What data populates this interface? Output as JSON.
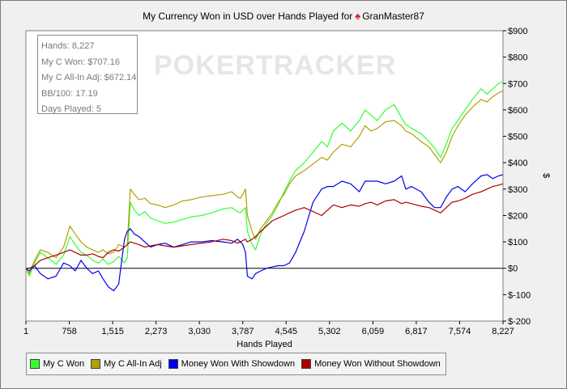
{
  "title": "My Currency Won in USD over Hands Played for",
  "player": "GranMaster87",
  "icon": "spade-icon",
  "watermark": "POKERTRACKER",
  "stats": [
    {
      "label": "Hands:",
      "value": "8,227"
    },
    {
      "label": "My C Won:",
      "value": "$707.16"
    },
    {
      "label": "My C All-In Adj:",
      "value": "$672.14"
    },
    {
      "label": "BB/100:",
      "value": "17.19"
    },
    {
      "label": "Days Played:",
      "value": "5"
    }
  ],
  "chart_data": {
    "type": "line",
    "title": "My Currency Won in USD over Hands Played for GranMaster87",
    "xlabel": "Hands Played",
    "ylabel": "$",
    "xlim": [
      1,
      8227
    ],
    "ylim": [
      -200,
      900
    ],
    "x_ticks": [
      "1",
      "758",
      "1,515",
      "2,273",
      "3,030",
      "3,787",
      "4,545",
      "5,302",
      "6,059",
      "6,817",
      "7,574",
      "8,227"
    ],
    "y_ticks": [
      "$900",
      "$800",
      "$700",
      "$600",
      "$500",
      "$400",
      "$300",
      "$200",
      "$100",
      "$0",
      "$-100",
      "$-200"
    ],
    "legend_position": "bottom",
    "series": [
      {
        "name": "My C Won",
        "color": "#33ff33",
        "x": [
          1,
          60,
          150,
          250,
          380,
          520,
          650,
          760,
          850,
          950,
          1050,
          1150,
          1250,
          1330,
          1420,
          1515,
          1600,
          1700,
          1750,
          1800,
          1870,
          1950,
          2050,
          2150,
          2273,
          2400,
          2550,
          2700,
          2850,
          3030,
          3200,
          3400,
          3550,
          3650,
          3700,
          3740,
          3787,
          3820,
          3900,
          3960,
          4050,
          4150,
          4250,
          4350,
          4450,
          4545,
          4650,
          4800,
          4950,
          5100,
          5200,
          5302,
          5450,
          5600,
          5750,
          5850,
          5950,
          6059,
          6200,
          6350,
          6480,
          6550,
          6650,
          6817,
          6950,
          7050,
          7150,
          7250,
          7350,
          7450,
          7574,
          7700,
          7850,
          7950,
          8050,
          8150,
          8227
        ],
        "values": [
          0,
          -30,
          20,
          60,
          40,
          15,
          50,
          120,
          90,
          60,
          50,
          30,
          20,
          35,
          15,
          25,
          45,
          20,
          40,
          250,
          220,
          200,
          215,
          190,
          180,
          170,
          175,
          185,
          195,
          200,
          210,
          225,
          230,
          215,
          210,
          220,
          230,
          140,
          90,
          70,
          130,
          170,
          200,
          240,
          290,
          330,
          370,
          400,
          440,
          480,
          460,
          520,
          550,
          520,
          560,
          600,
          580,
          560,
          600,
          620,
          570,
          545,
          530,
          510,
          480,
          455,
          420,
          470,
          530,
          560,
          600,
          640,
          680,
          660,
          680,
          700,
          707
        ]
      },
      {
        "name": "My C All-In Adj",
        "color": "#b0a000",
        "x": [
          1,
          60,
          150,
          250,
          380,
          520,
          650,
          760,
          850,
          950,
          1050,
          1150,
          1250,
          1330,
          1420,
          1515,
          1600,
          1700,
          1750,
          1800,
          1870,
          1950,
          2050,
          2150,
          2273,
          2400,
          2550,
          2700,
          2850,
          3030,
          3200,
          3400,
          3550,
          3650,
          3700,
          3740,
          3787,
          3820,
          3900,
          3960,
          4050,
          4150,
          4250,
          4350,
          4450,
          4545,
          4650,
          4800,
          4950,
          5100,
          5200,
          5302,
          5450,
          5600,
          5750,
          5850,
          5950,
          6059,
          6200,
          6350,
          6480,
          6550,
          6650,
          6817,
          6950,
          7050,
          7150,
          7250,
          7350,
          7450,
          7574,
          7700,
          7850,
          7950,
          8050,
          8150,
          8227
        ],
        "values": [
          0,
          -20,
          30,
          70,
          60,
          40,
          80,
          160,
          130,
          100,
          80,
          70,
          60,
          70,
          55,
          60,
          90,
          80,
          90,
          300,
          280,
          260,
          265,
          245,
          240,
          230,
          240,
          255,
          260,
          270,
          275,
          280,
          290,
          270,
          265,
          280,
          300,
          200,
          140,
          110,
          150,
          180,
          210,
          250,
          280,
          320,
          350,
          370,
          395,
          420,
          410,
          440,
          470,
          460,
          500,
          540,
          520,
          530,
          555,
          560,
          540,
          520,
          510,
          480,
          460,
          430,
          400,
          440,
          500,
          540,
          580,
          610,
          640,
          630,
          650,
          665,
          672
        ]
      },
      {
        "name": "Money Won With Showdown",
        "color": "#0000ee",
        "x": [
          1,
          60,
          150,
          250,
          380,
          520,
          650,
          760,
          850,
          950,
          1050,
          1150,
          1250,
          1330,
          1420,
          1515,
          1600,
          1700,
          1750,
          1800,
          1870,
          1950,
          2050,
          2150,
          2273,
          2400,
          2550,
          2700,
          2850,
          3030,
          3200,
          3400,
          3550,
          3650,
          3700,
          3740,
          3787,
          3820,
          3900,
          3960,
          4050,
          4150,
          4250,
          4350,
          4450,
          4545,
          4650,
          4800,
          4950,
          5100,
          5200,
          5302,
          5450,
          5600,
          5750,
          5850,
          5950,
          6059,
          6200,
          6350,
          6480,
          6550,
          6650,
          6817,
          6950,
          7050,
          7150,
          7250,
          7350,
          7450,
          7574,
          7700,
          7850,
          7950,
          8050,
          8150,
          8227
        ],
        "values": [
          0,
          -10,
          10,
          -20,
          -40,
          -30,
          20,
          10,
          -10,
          30,
          0,
          -20,
          -10,
          -40,
          -70,
          -85,
          -60,
          110,
          140,
          150,
          130,
          120,
          100,
          80,
          90,
          95,
          80,
          90,
          100,
          100,
          105,
          100,
          95,
          110,
          100,
          90,
          60,
          -30,
          -40,
          -20,
          -10,
          0,
          5,
          10,
          10,
          20,
          60,
          140,
          250,
          300,
          310,
          310,
          330,
          320,
          290,
          330,
          330,
          330,
          320,
          330,
          350,
          300,
          310,
          290,
          250,
          230,
          230,
          270,
          300,
          310,
          290,
          320,
          350,
          355,
          340,
          350,
          355
        ]
      },
      {
        "name": "Money Won Without Showdown",
        "color": "#aa0000",
        "x": [
          1,
          60,
          150,
          250,
          380,
          520,
          650,
          760,
          850,
          950,
          1050,
          1150,
          1250,
          1330,
          1420,
          1515,
          1600,
          1700,
          1750,
          1800,
          1870,
          1950,
          2050,
          2150,
          2273,
          2400,
          2550,
          2700,
          2850,
          3030,
          3200,
          3400,
          3550,
          3650,
          3700,
          3740,
          3787,
          3820,
          3900,
          3960,
          4050,
          4150,
          4250,
          4350,
          4450,
          4545,
          4650,
          4800,
          4950,
          5100,
          5200,
          5302,
          5450,
          5600,
          5750,
          5850,
          5950,
          6059,
          6200,
          6350,
          6480,
          6550,
          6650,
          6817,
          6950,
          7050,
          7150,
          7250,
          7350,
          7450,
          7574,
          7700,
          7850,
          7950,
          8050,
          8150,
          8227
        ],
        "values": [
          0,
          0,
          10,
          30,
          40,
          50,
          60,
          70,
          60,
          50,
          50,
          55,
          45,
          40,
          60,
          70,
          65,
          80,
          90,
          100,
          95,
          90,
          80,
          85,
          90,
          85,
          80,
          85,
          90,
          95,
          100,
          110,
          105,
          95,
          100,
          105,
          110,
          100,
          110,
          120,
          140,
          160,
          180,
          190,
          200,
          210,
          220,
          230,
          215,
          200,
          220,
          240,
          230,
          240,
          235,
          245,
          250,
          240,
          255,
          260,
          245,
          250,
          245,
          235,
          230,
          220,
          210,
          230,
          250,
          255,
          265,
          280,
          290,
          300,
          310,
          315,
          320
        ]
      }
    ]
  }
}
